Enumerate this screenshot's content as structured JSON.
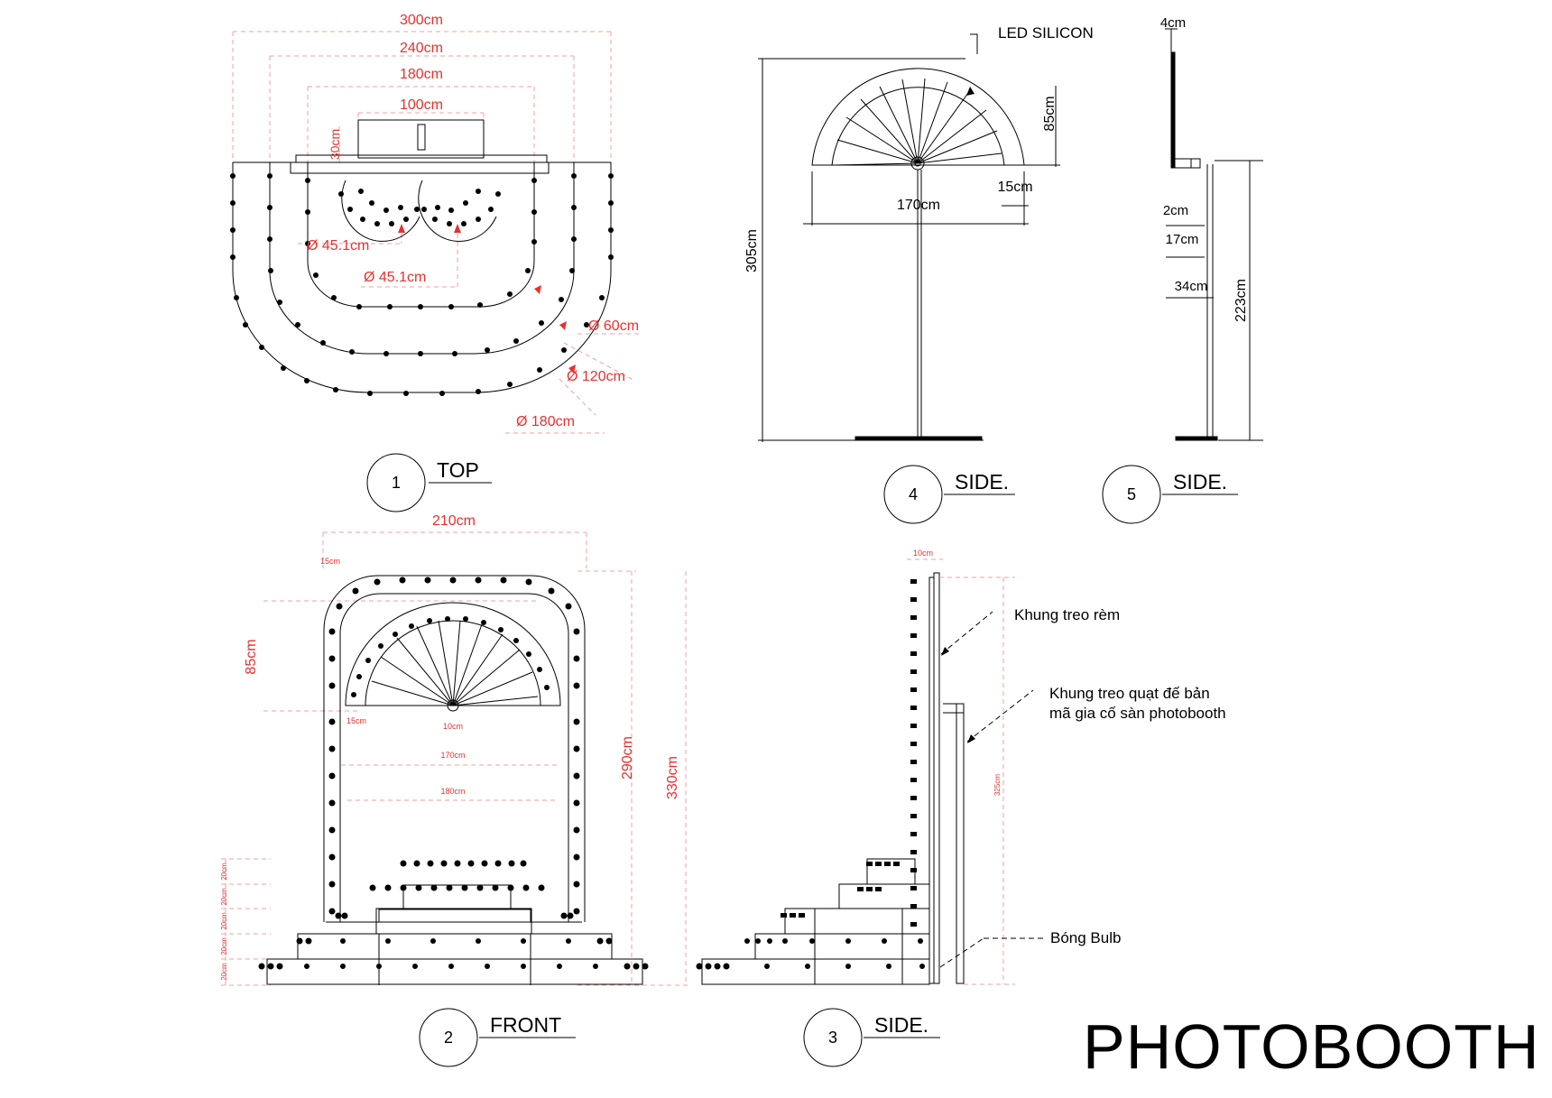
{
  "sheet_title": "PHOTOBOOTH",
  "views": {
    "top": {
      "number": "1",
      "title": "TOP",
      "dims": {
        "w300": "300cm",
        "w240": "240cm",
        "w180": "180cm",
        "w100": "100cm",
        "d30": "30cm",
        "dia_a": "Ø 45.1cm",
        "dia_b": "Ø 45.1cm",
        "r60": "Ø 60cm",
        "r120": "Ø 120cm",
        "r180": "Ø 180cm"
      }
    },
    "side4": {
      "number": "4",
      "title": "SIDE.",
      "dims": {
        "led": "LED SILICON",
        "h85": "85cm",
        "w170": "170cm",
        "w15": "15cm",
        "h305": "305cm"
      }
    },
    "side5": {
      "number": "5",
      "title": "SIDE.",
      "dims": {
        "t4": "4cm",
        "t2": "2cm",
        "t17": "17cm",
        "t34": "34cm",
        "h223": "223cm"
      }
    },
    "front": {
      "number": "2",
      "title": "FRONT",
      "dims": {
        "w210": "210cm",
        "w15": "15cm",
        "h85": "85cm",
        "w15b": "15cm",
        "w10": "10cm",
        "w170": "170cm",
        "w180": "180cm",
        "h290": "290cm",
        "h330": "330cm",
        "steps": [
          "20cm",
          "20cm",
          "20cm",
          "20cm",
          "20cm"
        ]
      }
    },
    "side3": {
      "number": "3",
      "title": "SIDE.",
      "dims": {
        "w10": "10cm",
        "h325": "325cm"
      },
      "notes": {
        "curtain": "Khung treo rèm",
        "fan_line1": "Khung treo quạt đế bản",
        "fan_line2": "mã gia cố sàn photobooth",
        "bulb": "Bóng Bulb"
      }
    }
  },
  "colors": {
    "dimension": "#e8302f",
    "line": "#000000",
    "guide": "#f0a0a0"
  }
}
